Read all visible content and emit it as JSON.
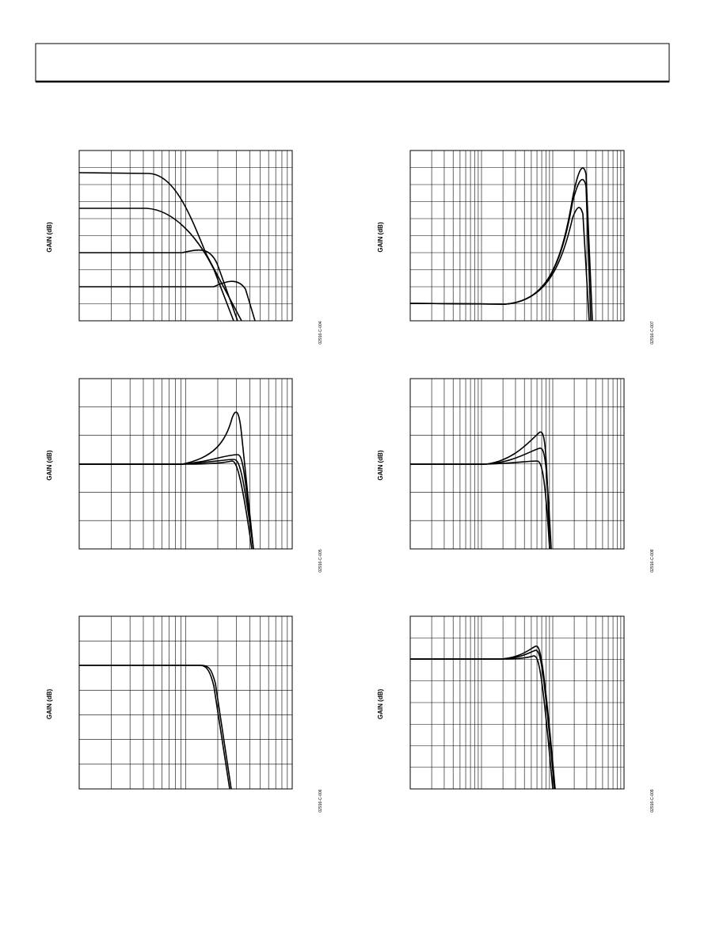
{
  "figures": [
    {
      "y_label": "GAIN (dB)",
      "figure_id": "02916-C-004"
    },
    {
      "y_label": "GAIN (dB)",
      "figure_id": "02916-C-007"
    },
    {
      "y_label": "GAIN (dB)",
      "figure_id": "02916-C-005"
    },
    {
      "y_label": "GAIN (dB)",
      "figure_id": "02916-C-008"
    },
    {
      "y_label": "GAIN (dB)",
      "figure_id": "02916-C-006"
    },
    {
      "y_label": "GAIN (dB)",
      "figure_id": "02916-C-009"
    }
  ]
}
